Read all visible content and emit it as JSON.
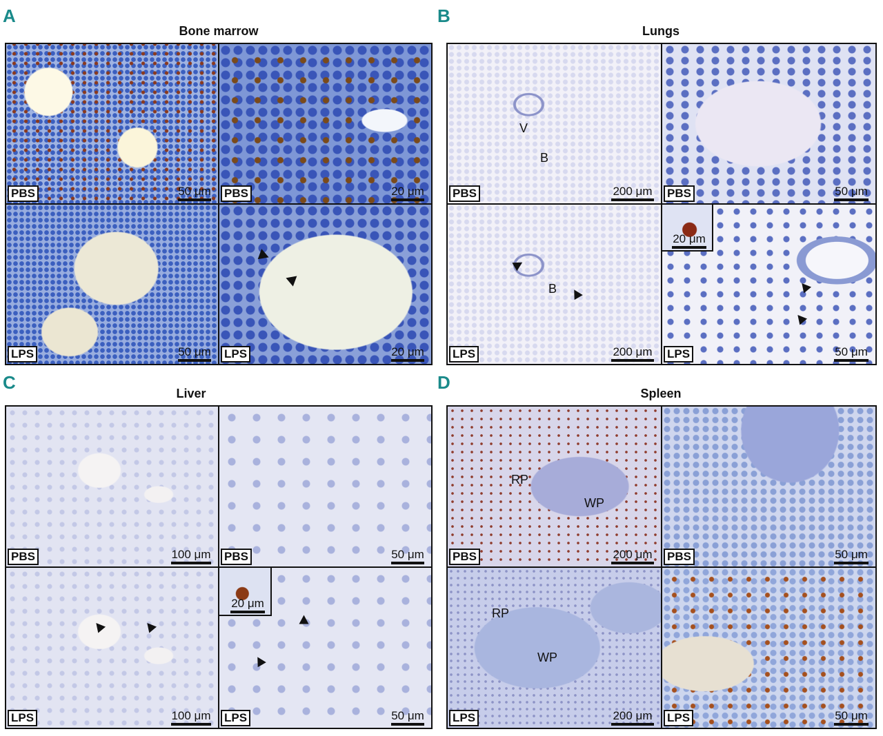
{
  "panels": {
    "A": {
      "letter": "A",
      "title": "Bone marrow",
      "images": [
        {
          "condition": "PBS",
          "scale": "50 μm"
        },
        {
          "condition": "PBS",
          "scale": "20 μm"
        },
        {
          "condition": "LPS",
          "scale": "50 μm"
        },
        {
          "condition": "LPS",
          "scale": "20 μm"
        }
      ]
    },
    "B": {
      "letter": "B",
      "title": "Lungs",
      "images": [
        {
          "condition": "PBS",
          "scale": "200 μm",
          "labels": [
            "V",
            "B"
          ]
        },
        {
          "condition": "PBS",
          "scale": "50 μm"
        },
        {
          "condition": "LPS",
          "scale": "200 μm",
          "labels": [
            "B"
          ]
        },
        {
          "condition": "LPS",
          "scale": "50 μm",
          "inset_scale": "20 μm"
        }
      ]
    },
    "C": {
      "letter": "C",
      "title": "Liver",
      "images": [
        {
          "condition": "PBS",
          "scale": "100 μm"
        },
        {
          "condition": "PBS",
          "scale": "50 μm"
        },
        {
          "condition": "LPS",
          "scale": "100 μm"
        },
        {
          "condition": "LPS",
          "scale": "50 μm",
          "inset_scale": "20 μm"
        }
      ]
    },
    "D": {
      "letter": "D",
      "title": "Spleen",
      "images": [
        {
          "condition": "PBS",
          "scale": "200 μm",
          "labels": [
            "RP",
            "WP"
          ]
        },
        {
          "condition": "PBS",
          "scale": "50 μm"
        },
        {
          "condition": "LPS",
          "scale": "200 μm",
          "labels": [
            "RP",
            "WP"
          ]
        },
        {
          "condition": "LPS",
          "scale": "50 μm"
        }
      ]
    }
  },
  "colors": {
    "panel_letter": "#1a8a8a",
    "border": "#111111"
  }
}
